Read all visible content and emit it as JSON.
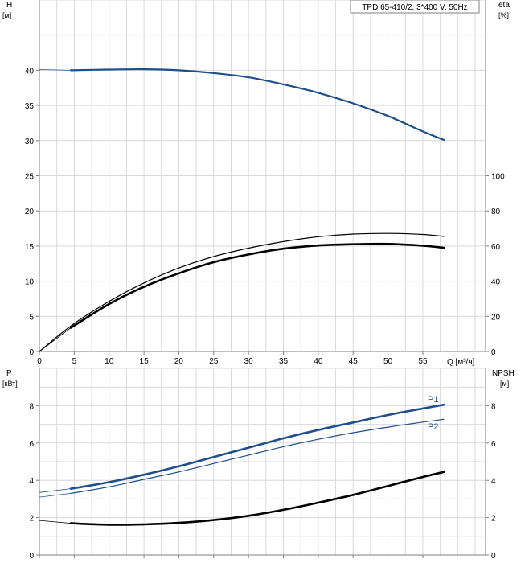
{
  "chart_data": [
    {
      "type": "line",
      "title": "TPD 65-410/2, 3*400 V, 50Hz",
      "left_axis": {
        "label": "H",
        "unit": "[м]",
        "ticks": [
          "0",
          "5",
          "10",
          "15",
          "20",
          "25",
          "30",
          "35",
          "40"
        ],
        "range": [
          0,
          50
        ]
      },
      "right_axis": {
        "label": "eta",
        "unit": "[%]",
        "ticks": [
          "0",
          "20",
          "40",
          "60",
          "80",
          "100"
        ],
        "range": [
          0,
          200
        ]
      },
      "x_axis": {
        "label": "Q [м³/ч]",
        "ticks": [
          "0",
          "5",
          "10",
          "15",
          "20",
          "25",
          "30",
          "35",
          "40",
          "45",
          "50",
          "55"
        ],
        "range": [
          0,
          64
        ]
      },
      "grid": true,
      "series": [
        {
          "axis": "left",
          "color": "#1f4e8c",
          "thin_x": [
            0,
            4.5
          ],
          "thin_y": [
            40.1,
            40.0
          ],
          "x": [
            4.5,
            10,
            15,
            20,
            25,
            30,
            35,
            40,
            45,
            50,
            55,
            58
          ],
          "y": [
            40.0,
            40.1,
            40.15,
            40.0,
            39.6,
            39.0,
            38.0,
            36.8,
            35.3,
            33.5,
            31.3,
            30.1
          ]
        },
        {
          "axis": "right",
          "color": "#000000",
          "width": 1.2,
          "x": [
            0,
            4.5,
            10,
            15,
            20,
            25,
            30,
            35,
            40,
            45,
            50,
            55,
            58
          ],
          "y": [
            0,
            14.5,
            28.5,
            39.0,
            47.5,
            54.0,
            58.8,
            62.5,
            65.3,
            66.8,
            67.2,
            66.6,
            65.5
          ]
        },
        {
          "axis": "right",
          "color": "#000000",
          "width": 2.6,
          "thin_x": [
            0,
            4.5
          ],
          "thin_y": [
            0,
            13.5
          ],
          "x": [
            4.5,
            10,
            15,
            20,
            25,
            30,
            35,
            40,
            45,
            50,
            55,
            58
          ],
          "y": [
            13.5,
            27.0,
            36.8,
            44.5,
            50.8,
            55.2,
            58.5,
            60.3,
            61.0,
            61.2,
            60.2,
            59.0
          ]
        }
      ]
    },
    {
      "type": "line",
      "left_axis": {
        "label": "P",
        "unit": "[кВт]",
        "ticks": [
          "0",
          "2",
          "4",
          "6",
          "8"
        ],
        "range": [
          0,
          10
        ]
      },
      "right_axis": {
        "label": "NPSH",
        "unit": "[м]",
        "ticks": [
          "0",
          "2",
          "4",
          "6",
          "8"
        ],
        "range": [
          0,
          10
        ]
      },
      "x_axis": {
        "range": [
          0,
          64
        ]
      },
      "grid": true,
      "series": [
        {
          "name": "P1",
          "axis": "left",
          "color": "#1f4e8c",
          "width": 2.6,
          "thin_x": [
            0,
            4.5
          ],
          "thin_y": [
            3.35,
            3.55
          ],
          "x": [
            4.5,
            10,
            15,
            20,
            25,
            30,
            35,
            40,
            45,
            50,
            55,
            58
          ],
          "y": [
            3.55,
            3.9,
            4.3,
            4.75,
            5.25,
            5.75,
            6.25,
            6.7,
            7.1,
            7.5,
            7.85,
            8.05
          ]
        },
        {
          "name": "P2",
          "axis": "left",
          "color": "#1f4e8c",
          "width": 1.2,
          "thin_x": [
            0,
            4.5
          ],
          "thin_y": [
            3.1,
            3.3
          ],
          "x": [
            4.5,
            10,
            15,
            20,
            25,
            30,
            35,
            40,
            45,
            50,
            55,
            58
          ],
          "y": [
            3.3,
            3.65,
            4.05,
            4.45,
            4.9,
            5.35,
            5.8,
            6.2,
            6.55,
            6.85,
            7.12,
            7.27
          ]
        },
        {
          "axis": "right",
          "color": "#000000",
          "width": 2.6,
          "thin_x": [
            0,
            4.5
          ],
          "thin_y": [
            1.85,
            1.7
          ],
          "x": [
            4.5,
            10,
            15,
            20,
            25,
            30,
            35,
            40,
            45,
            50,
            55,
            58
          ],
          "y": [
            1.7,
            1.62,
            1.64,
            1.72,
            1.87,
            2.1,
            2.42,
            2.8,
            3.22,
            3.7,
            4.18,
            4.45
          ]
        }
      ]
    }
  ]
}
